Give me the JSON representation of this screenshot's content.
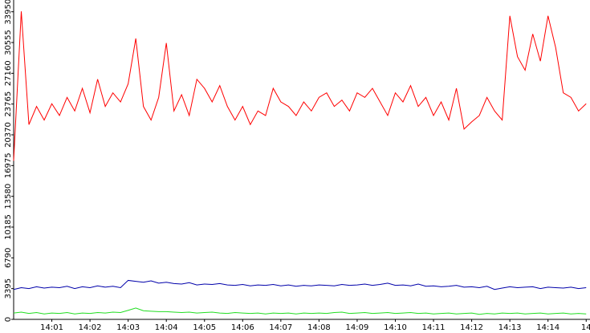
{
  "chart_data": {
    "type": "line",
    "x": [
      0,
      0.2,
      0.4,
      0.6,
      0.8,
      1,
      1.2,
      1.4,
      1.6,
      1.8,
      2,
      2.2,
      2.4,
      2.6,
      2.8,
      3,
      3.2,
      3.4,
      3.6,
      3.8,
      4,
      4.2,
      4.4,
      4.6,
      4.8,
      5,
      5.2,
      5.4,
      5.6,
      5.8,
      6,
      6.2,
      6.4,
      6.6,
      6.8,
      7,
      7.2,
      7.4,
      7.6,
      7.8,
      8,
      8.2,
      8.4,
      8.6,
      8.8,
      9,
      9.2,
      9.4,
      9.6,
      9.8,
      10,
      10.2,
      10.4,
      10.6,
      10.8,
      11,
      11.2,
      11.4,
      11.6,
      11.8,
      12,
      12.2,
      12.4,
      12.6,
      12.8,
      13,
      13.2,
      13.4,
      13.6,
      13.8,
      14,
      14.2,
      14.4,
      14.6,
      14.8,
      15
    ],
    "series": [
      {
        "name": "red",
        "color": "#ff0000",
        "values": [
          17500,
          34000,
          21500,
          23500,
          22000,
          23800,
          22500,
          24500,
          23000,
          25500,
          22800,
          26500,
          23500,
          25000,
          24000,
          26000,
          31000,
          23500,
          22000,
          24500,
          30500,
          23000,
          24800,
          22500,
          26500,
          25500,
          24000,
          25800,
          23500,
          22000,
          23500,
          21500,
          23000,
          22500,
          25500,
          24000,
          23500,
          22500,
          24000,
          23000,
          24500,
          25000,
          23500,
          24200,
          23000,
          25000,
          24500,
          25500,
          24000,
          22500,
          25000,
          24000,
          25800,
          23500,
          24500,
          22500,
          24000,
          22000,
          25500,
          21000,
          21800,
          22500,
          24500,
          23000,
          22000,
          33500,
          29000,
          27500,
          31500,
          28500,
          33500,
          30000,
          25000,
          24500,
          23000,
          23800
        ]
      },
      {
        "name": "blue",
        "color": "#0000aa",
        "values": [
          3300,
          3500,
          3400,
          3600,
          3450,
          3550,
          3500,
          3650,
          3400,
          3600,
          3500,
          3700,
          3550,
          3650,
          3500,
          4300,
          4200,
          4100,
          4250,
          4000,
          4100,
          3950,
          3900,
          4050,
          3800,
          3900,
          3850,
          3950,
          3800,
          3750,
          3850,
          3700,
          3800,
          3750,
          3850,
          3700,
          3800,
          3650,
          3750,
          3700,
          3800,
          3750,
          3700,
          3850,
          3750,
          3800,
          3900,
          3750,
          3850,
          4000,
          3750,
          3800,
          3700,
          3900,
          3650,
          3700,
          3600,
          3650,
          3750,
          3550,
          3600,
          3500,
          3650,
          3300,
          3450,
          3600,
          3500,
          3550,
          3600,
          3400,
          3550,
          3500,
          3450,
          3550,
          3400,
          3500
        ]
      },
      {
        "name": "green",
        "color": "#22dd22",
        "values": [
          700,
          800,
          650,
          750,
          600,
          700,
          650,
          750,
          600,
          700,
          650,
          750,
          700,
          800,
          750,
          1000,
          1250,
          950,
          900,
          850,
          850,
          800,
          750,
          800,
          700,
          750,
          800,
          700,
          650,
          750,
          700,
          650,
          700,
          600,
          700,
          650,
          700,
          600,
          700,
          650,
          700,
          650,
          750,
          800,
          650,
          700,
          750,
          650,
          700,
          750,
          650,
          700,
          750,
          650,
          700,
          600,
          650,
          700,
          600,
          650,
          700,
          550,
          650,
          600,
          700,
          650,
          700,
          600,
          650,
          700,
          600,
          650,
          700,
          600,
          650,
          600
        ]
      }
    ],
    "xlim": [
      0,
      15.1
    ],
    "xticks": [
      {
        "value": 1,
        "label": "14:01"
      },
      {
        "value": 2,
        "label": "14:02"
      },
      {
        "value": 3,
        "label": "14:03"
      },
      {
        "value": 4,
        "label": "14:04"
      },
      {
        "value": 5,
        "label": "14:05"
      },
      {
        "value": 6,
        "label": "14:06"
      },
      {
        "value": 7,
        "label": "14:07"
      },
      {
        "value": 8,
        "label": "14:08"
      },
      {
        "value": 9,
        "label": "14:09"
      },
      {
        "value": 10,
        "label": "14:10"
      },
      {
        "value": 11,
        "label": "14:11"
      },
      {
        "value": 12,
        "label": "14:12"
      },
      {
        "value": 13,
        "label": "14:13"
      },
      {
        "value": 14,
        "label": "14:14"
      },
      {
        "value": 15,
        "label": "14"
      }
    ],
    "ylim": [
      0,
      35250
    ],
    "yticks": [
      0,
      3395,
      6790,
      10185,
      13580,
      16975,
      20370,
      23765,
      27160,
      30555,
      33950
    ]
  }
}
